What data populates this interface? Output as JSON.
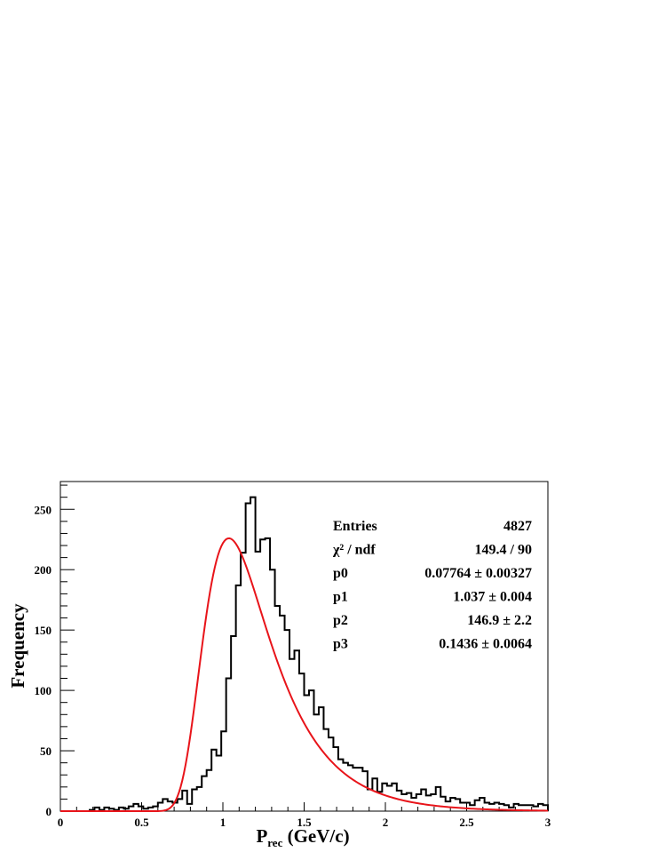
{
  "chart_data": {
    "type": "histogram",
    "xlabel": {
      "main": "P",
      "sub": "rec",
      "rest": " (GeV/c)"
    },
    "ylabel": "Frequency",
    "xlim": [
      0,
      3
    ],
    "ylim": [
      0,
      273
    ],
    "x_ticks": [
      "0",
      "0.5",
      "1",
      "1.5",
      "2",
      "2.5",
      "3"
    ],
    "y_ticks": [
      "0",
      "50",
      "100",
      "150",
      "200",
      "250"
    ],
    "bin_width": 0.03,
    "bins_x_start": 0,
    "counts": [
      0,
      0,
      0,
      0,
      0,
      0,
      1,
      3,
      1,
      3,
      2,
      1,
      3,
      2,
      4,
      6,
      4,
      2,
      3,
      4,
      7,
      10,
      8,
      7,
      10,
      17,
      6,
      18,
      20,
      29,
      34,
      51,
      46,
      66,
      110,
      145,
      187,
      214,
      255,
      260,
      215,
      225,
      226,
      200,
      170,
      162,
      150,
      126,
      133,
      114,
      96,
      100,
      80,
      86,
      68,
      61,
      53,
      43,
      40,
      38,
      36,
      36,
      33,
      18,
      27,
      16,
      23,
      21,
      23,
      17,
      14,
      15,
      11,
      14,
      18,
      13,
      14,
      20,
      12,
      8,
      11,
      10,
      7,
      7,
      5,
      9,
      11,
      7,
      6,
      7,
      6,
      5,
      3,
      6,
      5,
      5,
      5,
      4,
      6,
      5
    ],
    "fit": {
      "color": "#e8141a",
      "p0": 0.07764,
      "p1": 1.037,
      "p2": 146.9,
      "p3": 0.1436
    },
    "stats": [
      {
        "label": "Entries",
        "value": "4827"
      },
      {
        "label": "χ² / ndf",
        "value": "149.4 / 90"
      },
      {
        "label": "p0",
        "value": "0.07764 ± 0.00327"
      },
      {
        "label": "p1",
        "value": "1.037 ± 0.004"
      },
      {
        "label": "p2",
        "value": "146.9 ± 2.2"
      },
      {
        "label": "p3",
        "value": "0.1436 ± 0.0064"
      }
    ]
  }
}
